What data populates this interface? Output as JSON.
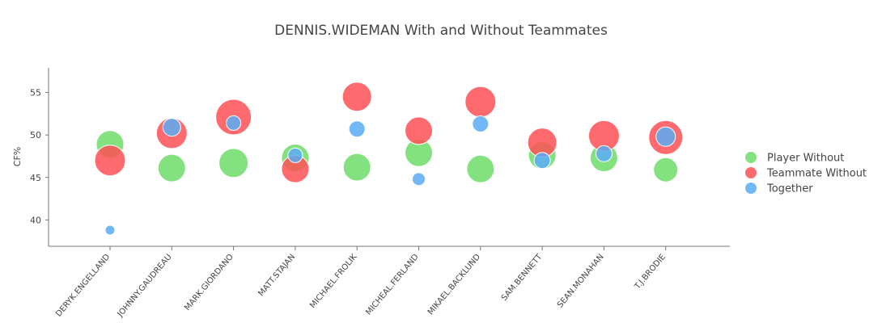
{
  "chart_data": {
    "type": "scatter",
    "title": "DENNIS.WIDEMAN With and Without Teammates",
    "xlabel": "",
    "ylabel": "CF%",
    "ylim": [
      36.9,
      57.9
    ],
    "yticks": [
      "40",
      "45",
      "50",
      "55"
    ],
    "grid": false,
    "legend_position": "right",
    "categories": [
      "DERYK.ENGELLAND",
      "JOHNNY.GAUDREAU",
      "MARK.GIORDANO",
      "MATT.STAJAN",
      "MICHAEL.FROLIK",
      "MICHEAL.FERLAND",
      "MIKAEL.BACKLUND",
      "SAM.BENNETT",
      "SEAN.MONAHAN",
      "T.J.BRODIE"
    ],
    "series": [
      {
        "name": "Player Without",
        "color": "#6fdc6a",
        "values": [
          48.9,
          46.1,
          46.7,
          47.3,
          46.2,
          47.9,
          46.0,
          47.6,
          47.3,
          45.9
        ],
        "sizes": [
          17,
          17,
          18,
          17,
          17,
          17,
          17,
          17,
          17,
          15
        ]
      },
      {
        "name": "Teammate Without",
        "color": "#ff5055",
        "values": [
          47.0,
          50.2,
          52.1,
          46.0,
          54.5,
          50.5,
          53.9,
          49.1,
          49.9,
          49.7
        ],
        "sizes": [
          19,
          19,
          22,
          17,
          18,
          17,
          19,
          18,
          19,
          21
        ]
      },
      {
        "name": "Together",
        "color": "#5aabf5",
        "values": [
          38.8,
          50.9,
          51.4,
          47.6,
          50.7,
          44.8,
          51.3,
          47.0,
          47.8,
          49.8
        ],
        "sizes": [
          6,
          11,
          9,
          9,
          10,
          8,
          10,
          10,
          10,
          12
        ]
      }
    ]
  }
}
